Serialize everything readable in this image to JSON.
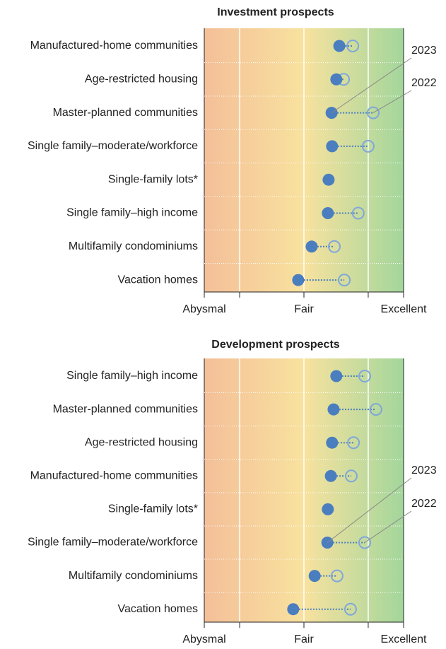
{
  "chart_data": [
    {
      "type": "dot",
      "title": "Investment prospects",
      "categories": [
        "Manufactured-home communities",
        "Age-restricted housing",
        "Master-planned communities",
        "Single family–moderate/workforce",
        "Single-family lots*",
        "Single family–high income ",
        "Multifamily condominiums",
        "Vacation homes"
      ],
      "series": [
        {
          "name": "2023",
          "color": "#4a7ebf",
          "values": [
            6.42,
            6.3,
            6.11,
            6.13,
            5.99,
            5.96,
            5.31,
            4.77
          ]
        },
        {
          "name": "2022",
          "color": "#7fa7db",
          "values": [
            6.96,
            6.59,
            7.78,
            7.58,
            null,
            7.18,
            6.22,
            6.62
          ]
        }
      ],
      "xlim": [
        1,
        9
      ],
      "xticks": [
        {
          "value": 1,
          "label": "Abysmal"
        },
        {
          "value": 5,
          "label": "Fair"
        },
        {
          "value": 9,
          "label": "Excellent"
        }
      ],
      "minor_xticks": [
        2.42,
        7.58
      ]
    },
    {
      "type": "dot",
      "title": "Development prospects",
      "categories": [
        "Single family–high income",
        "Master-planned communities",
        "Age-restricted housing",
        "Manufactured-home communities",
        "Single-family lots*",
        "Single family–moderate/workforce",
        "Multifamily condominiums",
        "Vacation homes"
      ],
      "series": [
        {
          "name": "2023",
          "color": "#4a7ebf",
          "values": [
            6.3,
            6.19,
            6.13,
            6.08,
            5.96,
            5.94,
            5.43,
            4.57
          ]
        },
        {
          "name": "2022",
          "color": "#7fa7db",
          "values": [
            7.44,
            7.89,
            6.99,
            6.9,
            null,
            7.44,
            6.33,
            6.87
          ]
        }
      ],
      "xlim": [
        1,
        9
      ],
      "xticks": [
        {
          "value": 1,
          "label": "Abysmal"
        },
        {
          "value": 5,
          "label": "Fair"
        },
        {
          "value": 9,
          "label": "Excellent"
        }
      ],
      "minor_xticks": [
        2.42,
        7.58
      ]
    }
  ]
}
